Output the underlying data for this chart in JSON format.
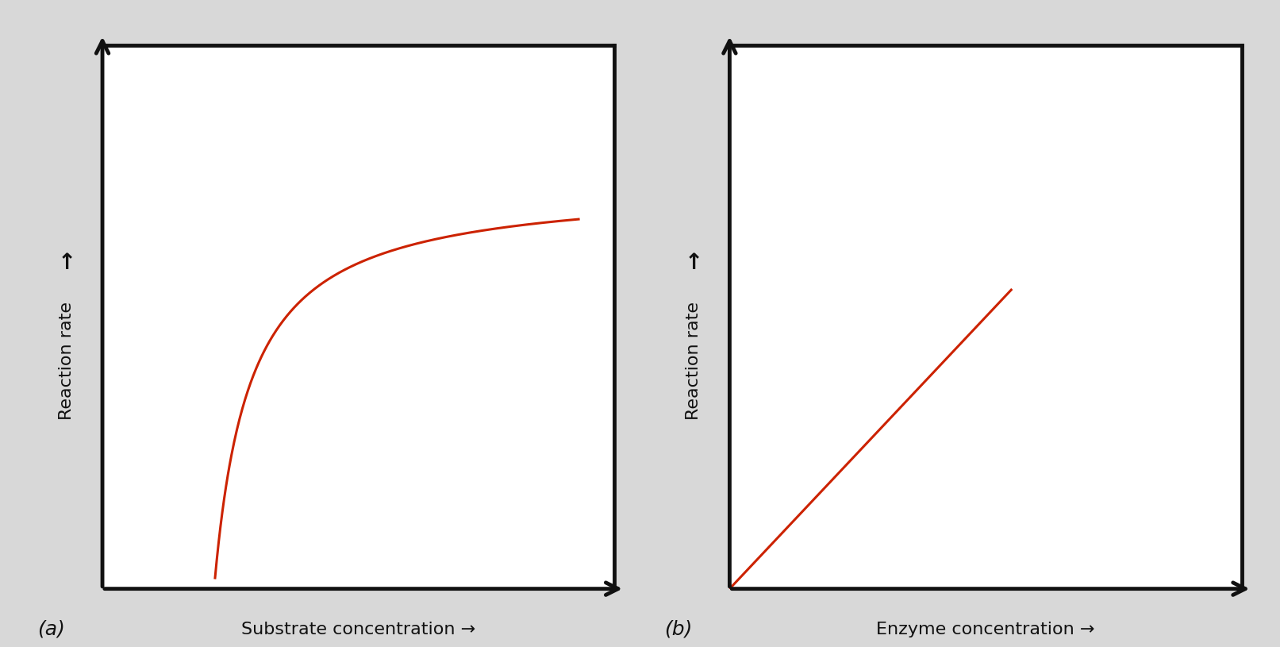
{
  "outer_bg": "#d8d8d8",
  "panel_bg": "#ffffff",
  "line_color": "#cc2200",
  "line_width": 2.2,
  "axis_color": "#111111",
  "axis_linewidth": 3.5,
  "label_a": "(a)",
  "label_b": "(b)",
  "xlabel_a": "Substrate concentration →",
  "xlabel_b": "Enzyme concentration →",
  "ylabel_arrow": "↑",
  "ylabel_text": "Reaction rate",
  "font_size_label": 16,
  "font_size_ab": 18
}
